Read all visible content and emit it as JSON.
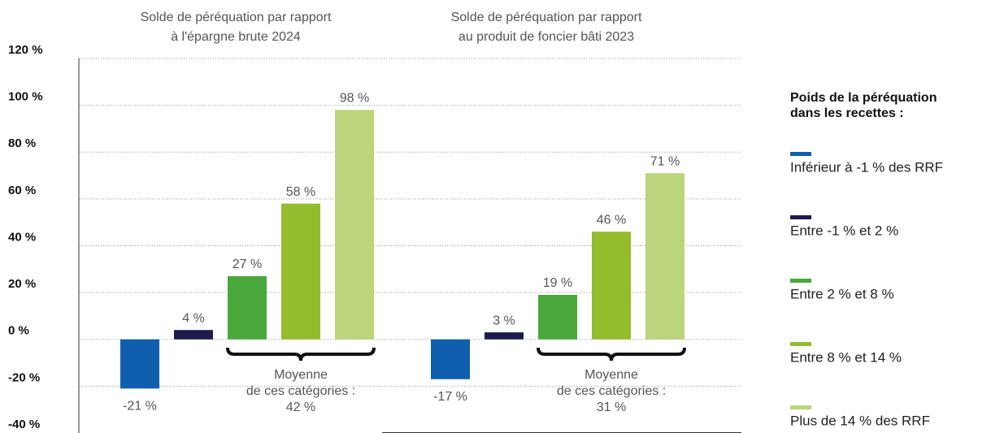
{
  "chart_data": {
    "type": "bar",
    "categories": [
      [
        "Solde de péréquation par rapport",
        "à l'épargne brute 2024"
      ],
      [
        "Solde de péréquation par rapport",
        "au produit de foncier bâti 2023"
      ]
    ],
    "series": [
      {
        "name": "Inférieur à -1 % des RRF",
        "color": "#0f5fae",
        "values": [
          -21,
          -17
        ],
        "value_labels": [
          "-21 %",
          "-17 %"
        ]
      },
      {
        "name": "Entre -1 % et 2 %",
        "color": "#1f1a4d",
        "values": [
          4,
          3
        ],
        "value_labels": [
          "4 %",
          "3 %"
        ]
      },
      {
        "name": "Entre 2 % et 8 %",
        "color": "#4aa83a",
        "values": [
          27,
          19
        ],
        "value_labels": [
          "27 %",
          "19 %"
        ]
      },
      {
        "name": "Entre 8 % et 14 %",
        "color": "#93bd2c",
        "values": [
          58,
          46
        ],
        "value_labels": [
          "58 %",
          "46 %"
        ]
      },
      {
        "name": "Plus de 14 % des RRF",
        "color": "#bcd47a",
        "values": [
          98,
          71
        ],
        "value_labels": [
          "98 %",
          "71 %"
        ]
      }
    ],
    "ylim": [
      -40,
      120
    ],
    "yticks": [
      {
        "value": -40,
        "label": "-40 %"
      },
      {
        "value": -20,
        "label": "-20 %"
      },
      {
        "value": 0,
        "label": "0 %"
      },
      {
        "value": 20,
        "label": "20 %"
      },
      {
        "value": 40,
        "label": "40 %"
      },
      {
        "value": 60,
        "label": "60 %"
      },
      {
        "value": 80,
        "label": "80 %"
      },
      {
        "value": 100,
        "label": "100 %"
      },
      {
        "value": 120,
        "label": "120 %"
      }
    ],
    "grid": true,
    "annotations": [
      [
        "Moyenne",
        "de ces catégories :",
        "42 %"
      ],
      [
        "Moyenne",
        "de ces catégories :",
        "31 %"
      ]
    ],
    "legend_title": [
      "Poids de la péréquation",
      "dans les recettes :"
    ],
    "legend_position": "right"
  }
}
